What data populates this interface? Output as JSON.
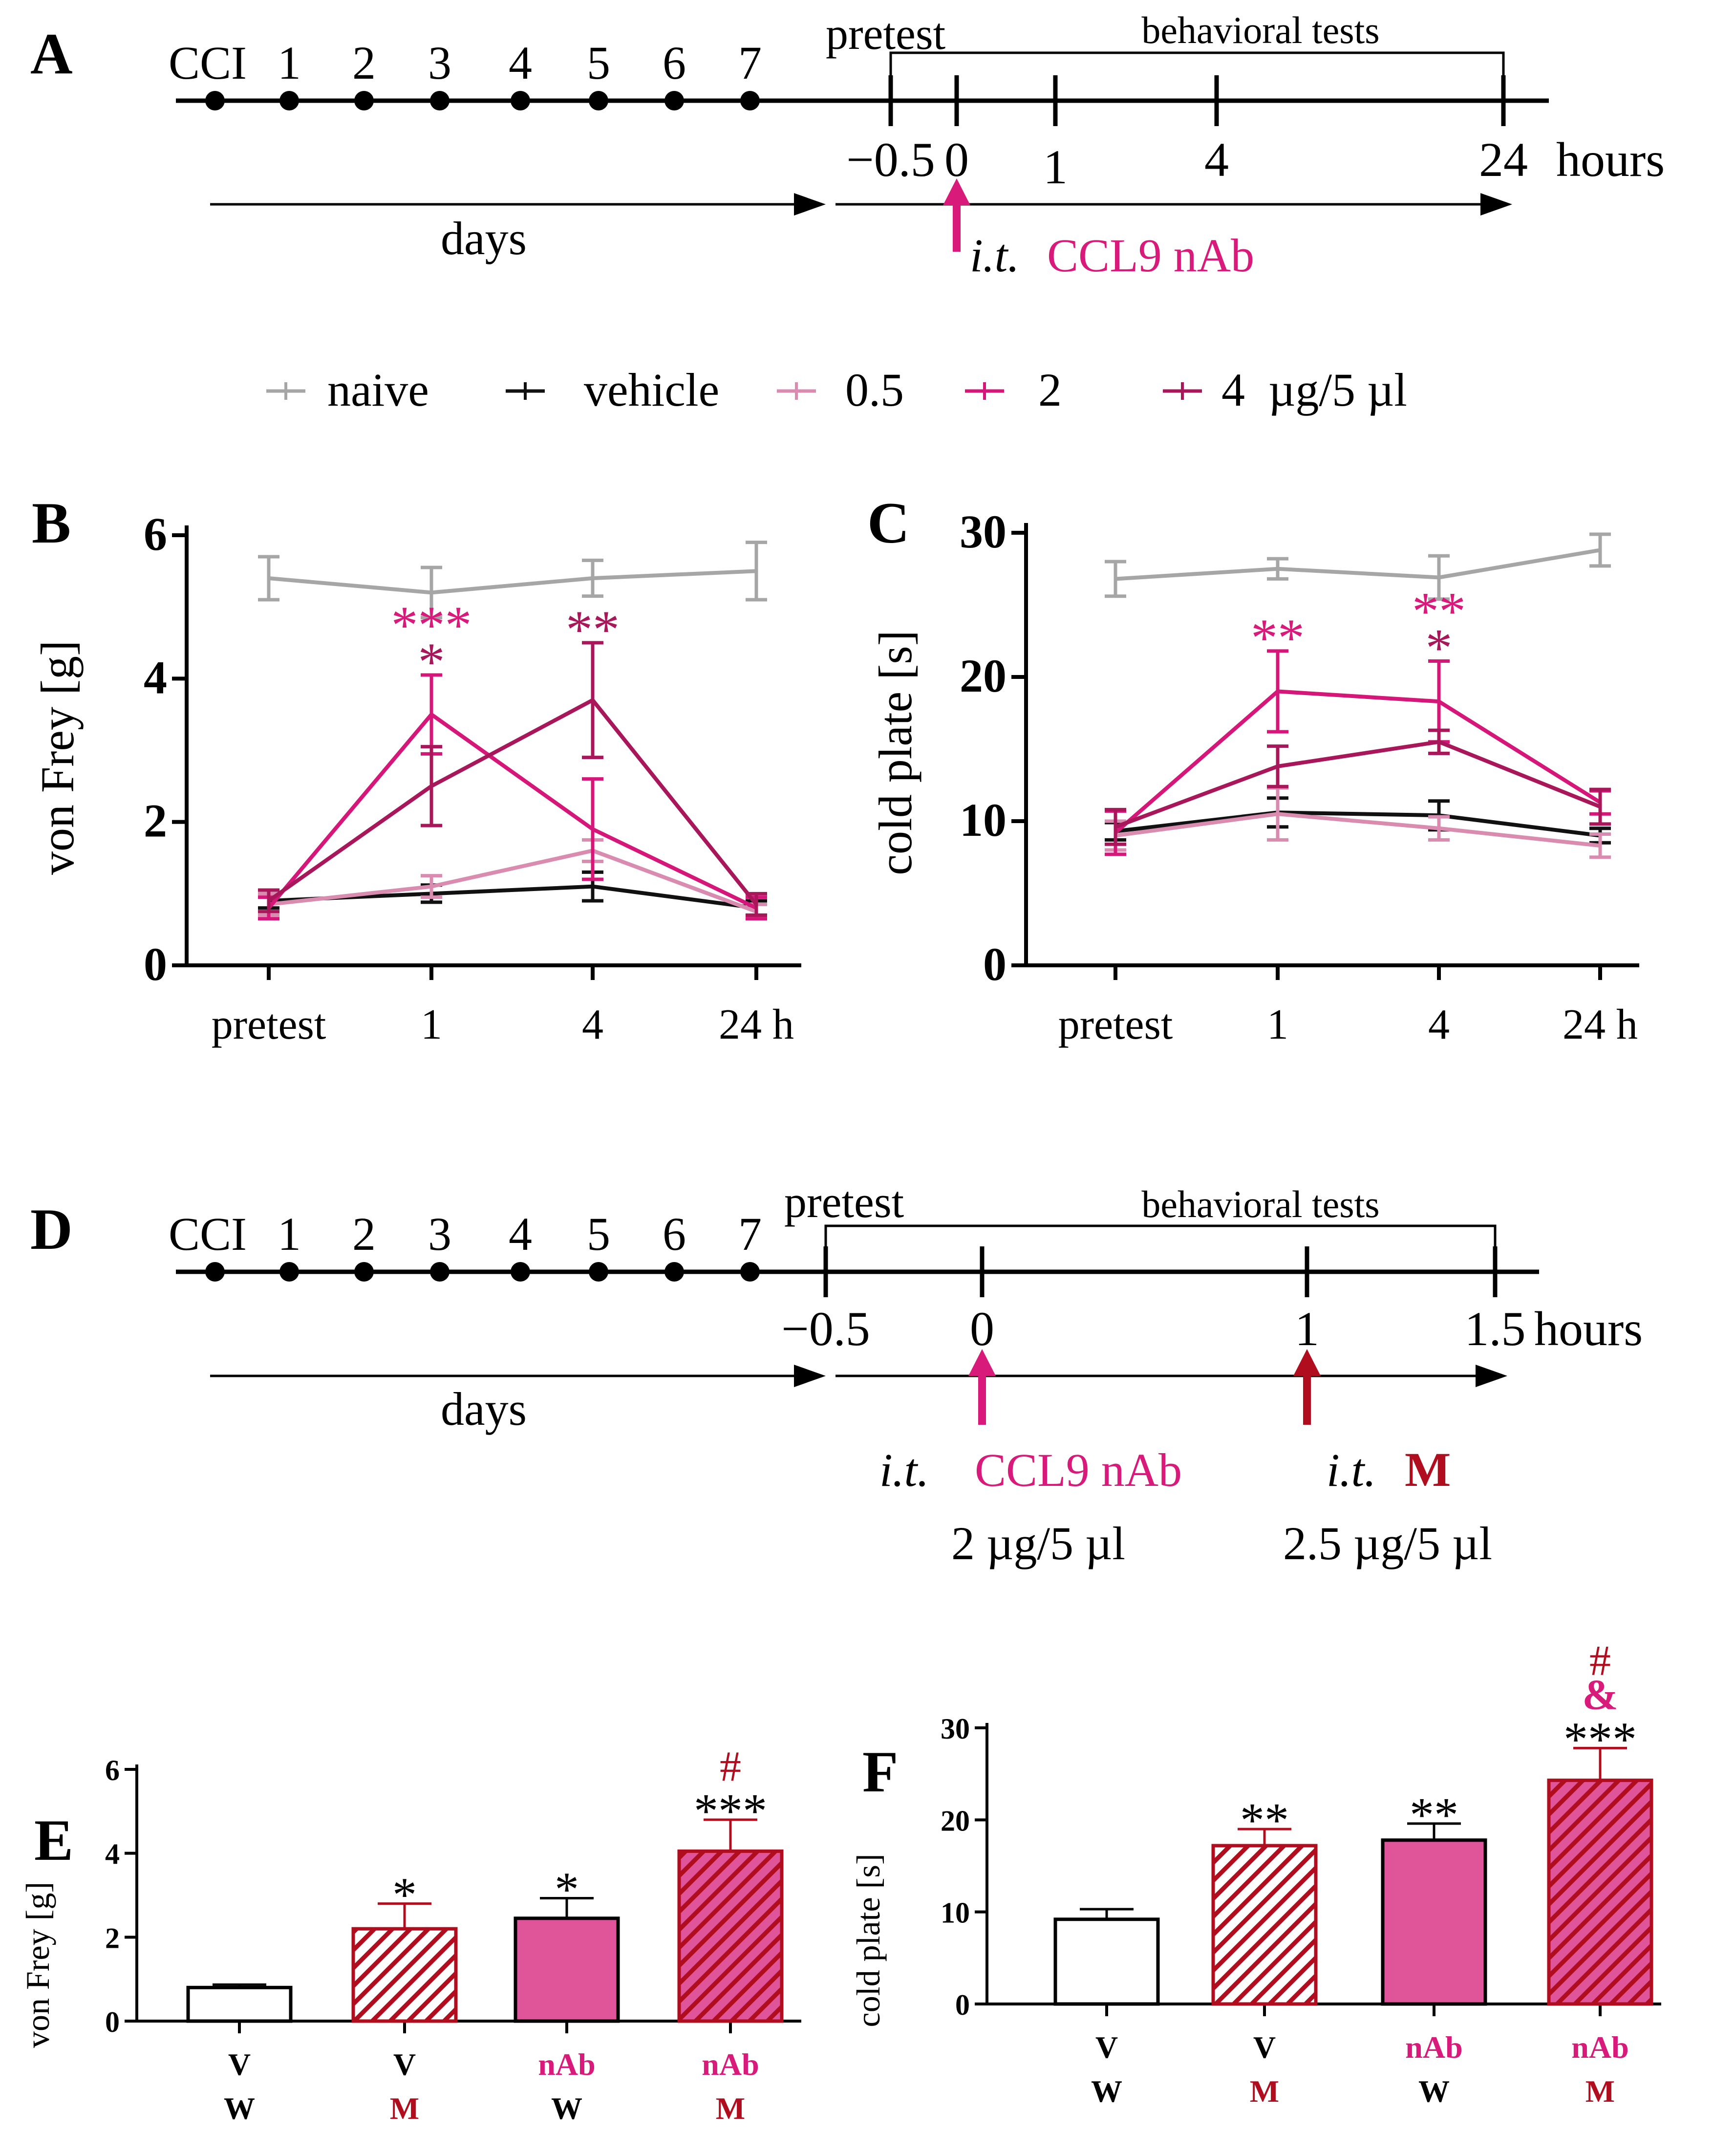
{
  "colors": {
    "naive": "#a6a6a6",
    "vehicle": "#111111",
    "dose_05": "#d98cb0",
    "dose_2": "#d6177a",
    "dose_4": "#a8175a",
    "magenta": "#d81b7a",
    "dark_red": "#b00d1e",
    "bar_nab": "#e0559a"
  },
  "panel_a": {
    "label": "A",
    "days_ticks": [
      "CCI",
      "1",
      "2",
      "3",
      "4",
      "5",
      "6",
      "7"
    ],
    "pretest_label": "pretest",
    "bracket_label": "behavioral tests",
    "time_ticks": [
      "−0.5",
      "0",
      "1",
      "4",
      "24"
    ],
    "time_unit": "hours",
    "days_label": "days",
    "injection_route": "i.t.",
    "injection_agent": "CCL9 nAb"
  },
  "legend": {
    "items": [
      {
        "key": "naive",
        "label": "naive"
      },
      {
        "key": "vehicle",
        "label": "vehicle"
      },
      {
        "key": "dose_05",
        "label": "0.5"
      },
      {
        "key": "dose_2",
        "label": "2"
      },
      {
        "key": "dose_4",
        "label": "4  µg/5 µl"
      }
    ]
  },
  "panel_d": {
    "label": "D",
    "days_ticks": [
      "CCI",
      "1",
      "2",
      "3",
      "4",
      "5",
      "6",
      "7"
    ],
    "pretest_label": "pretest",
    "bracket_label": "behavioral tests",
    "time_ticks": [
      "−0.5",
      "0",
      "1",
      "1.5"
    ],
    "time_unit": "hours",
    "days_label": "days",
    "inj1_route": "i.t.",
    "inj1_agent": "CCL9 nAb",
    "inj1_dose": "2 µg/5 µl",
    "inj2_route": "i.t.",
    "inj2_agent": "M",
    "inj2_dose": "2.5 µg/5 µl"
  },
  "chart_data": [
    {
      "panel": "B",
      "type": "line",
      "ylabel": "von Frey [g]",
      "categories": [
        "pretest",
        "1",
        "4",
        "24 h"
      ],
      "ylim": [
        0,
        6
      ],
      "yticks": [
        0,
        2,
        4,
        6
      ],
      "series": [
        {
          "name": "naive",
          "values": [
            5.4,
            5.2,
            5.4,
            5.5
          ],
          "errors": [
            0.3,
            0.35,
            0.25,
            0.4
          ]
        },
        {
          "name": "vehicle",
          "values": [
            0.9,
            1.0,
            1.1,
            0.8
          ],
          "errors": [
            0.1,
            0.12,
            0.2,
            0.1
          ]
        },
        {
          "name": "0.5",
          "values": [
            0.85,
            1.1,
            1.6,
            0.75
          ],
          "errors": [
            0.15,
            0.15,
            0.15,
            0.1
          ]
        },
        {
          "name": "2",
          "values": [
            0.8,
            3.5,
            1.9,
            0.8
          ],
          "errors": [
            0.15,
            0.55,
            0.7,
            0.15
          ]
        },
        {
          "name": "4",
          "values": [
            0.9,
            2.5,
            3.7,
            0.85
          ],
          "errors": [
            0.15,
            0.55,
            0.8,
            0.15
          ]
        }
      ],
      "annotations": [
        {
          "category": "1",
          "lines": [
            {
              "text": "***",
              "color": "#d81b7a"
            },
            {
              "text": "*",
              "color": "#a8175a"
            }
          ]
        },
        {
          "category": "4",
          "lines": [
            {
              "text": "**",
              "color": "#a8175a"
            }
          ]
        }
      ]
    },
    {
      "panel": "C",
      "type": "line",
      "ylabel": "cold plate [s]",
      "categories": [
        "pretest",
        "1",
        "4",
        "24 h"
      ],
      "ylim": [
        0,
        30
      ],
      "yticks": [
        0,
        10,
        20,
        30
      ],
      "series": [
        {
          "name": "naive",
          "values": [
            26.8,
            27.5,
            26.9,
            28.8
          ],
          "errors": [
            1.2,
            0.7,
            1.5,
            1.1
          ]
        },
        {
          "name": "vehicle",
          "values": [
            9.3,
            10.6,
            10.4,
            9.0
          ],
          "errors": [
            0.6,
            1.0,
            1.0,
            0.5
          ]
        },
        {
          "name": "0.5",
          "values": [
            9.0,
            10.5,
            9.5,
            8.3
          ],
          "errors": [
            1.0,
            1.8,
            0.8,
            0.8
          ]
        },
        {
          "name": "2",
          "values": [
            9.2,
            19.0,
            18.3,
            11.3
          ],
          "errors": [
            1.5,
            2.8,
            2.8,
            0.8
          ]
        },
        {
          "name": "4",
          "values": [
            9.6,
            13.8,
            15.5,
            11.0
          ],
          "errors": [
            1.2,
            1.4,
            0.8,
            1.2
          ]
        }
      ],
      "annotations": [
        {
          "category": "1",
          "lines": [
            {
              "text": "**",
              "color": "#d81b7a"
            }
          ]
        },
        {
          "category": "4",
          "lines": [
            {
              "text": "**",
              "color": "#d81b7a"
            },
            {
              "text": "*",
              "color": "#a8175a"
            }
          ]
        }
      ]
    },
    {
      "panel": "E",
      "type": "bar",
      "ylabel": "von Frey [g]",
      "ylim": [
        0,
        6
      ],
      "yticks": [
        0,
        2,
        4,
        6
      ],
      "bars": [
        {
          "top": "V",
          "bottom": "W",
          "value": 0.8,
          "error": 0.07,
          "style": "open",
          "stars": ""
        },
        {
          "top": "V",
          "bottom": "M",
          "value": 2.2,
          "error": 0.6,
          "style": "hatched",
          "stars": "*"
        },
        {
          "top": "nAb",
          "bottom": "W",
          "value": 2.45,
          "error": 0.48,
          "style": "solid",
          "stars": "*"
        },
        {
          "top": "nAb",
          "bottom": "M",
          "value": 4.05,
          "error": 0.75,
          "style": "solid-hatched",
          "stars": "***",
          "extra": [
            "#"
          ]
        }
      ]
    },
    {
      "panel": "F",
      "type": "bar",
      "ylabel": "cold plate [s]",
      "ylim": [
        0,
        30
      ],
      "yticks": [
        0,
        10,
        20,
        30
      ],
      "bars": [
        {
          "top": "V",
          "bottom": "W",
          "value": 9.2,
          "error": 1.1,
          "style": "open",
          "stars": ""
        },
        {
          "top": "V",
          "bottom": "M",
          "value": 17.2,
          "error": 1.8,
          "style": "hatched",
          "stars": "**"
        },
        {
          "top": "nAb",
          "bottom": "W",
          "value": 17.8,
          "error": 1.8,
          "style": "solid",
          "stars": "**"
        },
        {
          "top": "nAb",
          "bottom": "M",
          "value": 24.3,
          "error": 3.5,
          "style": "solid-hatched",
          "stars": "***",
          "extra": [
            "#",
            "&"
          ]
        }
      ]
    }
  ]
}
